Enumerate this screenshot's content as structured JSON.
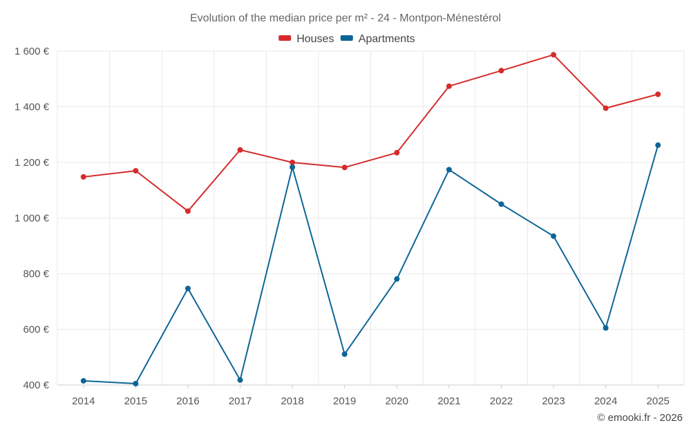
{
  "chart_data": {
    "type": "line",
    "title": "Evolution of the median price per m² - 24 - Montpon-Ménestérol",
    "xlabel": "",
    "ylabel": "",
    "categories": [
      "2014",
      "2015",
      "2016",
      "2017",
      "2018",
      "2019",
      "2020",
      "2021",
      "2022",
      "2023",
      "2024",
      "2025"
    ],
    "ylim": [
      400,
      1600
    ],
    "yticks": [
      400,
      600,
      800,
      1000,
      1200,
      1400,
      1600
    ],
    "ytick_labels": [
      "400 €",
      "600 €",
      "800 €",
      "1 000 €",
      "1 200 €",
      "1 400 €",
      "1 600 €"
    ],
    "grid": true,
    "legend_position": "top-center",
    "series": [
      {
        "name": "Houses",
        "color": "#d62b2b",
        "values": [
          1148,
          1170,
          1025,
          1245,
          1200,
          1182,
          1235,
          1474,
          1530,
          1587,
          1395,
          1445
        ]
      },
      {
        "name": "Apartments",
        "color": "#0d6597",
        "values": [
          415,
          405,
          747,
          418,
          1183,
          511,
          781,
          1174,
          1050,
          935,
          605,
          1262
        ]
      }
    ]
  },
  "credit": "© emooki.fr - 2026"
}
